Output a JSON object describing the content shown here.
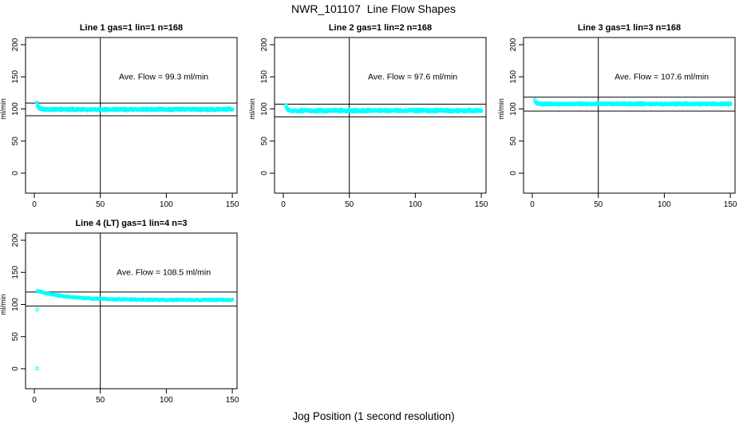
{
  "page": {
    "title": "NWR_101107  Line Flow Shapes",
    "xlabel": "Jog Position (1 second resolution)",
    "ylabel": "ml/min",
    "background": "#ffffff",
    "point_color": "#00ffff",
    "line_color": "#000000"
  },
  "chart_data": [
    {
      "type": "scatter",
      "title": "Line 1 gas=1 lin=1 n=168",
      "annotation": "Ave. Flow =  99.3  ml/min",
      "ave_flow_ml_min": 99.3,
      "ylabel": "ml/min",
      "xticks": [
        0,
        50,
        100,
        150
      ],
      "yticks": [
        0,
        50,
        100,
        150,
        200
      ],
      "xlim": [
        -6.6,
        153.6
      ],
      "ylim": [
        -31,
        211
      ],
      "ref_hlines": [
        109.2,
        89.4
      ],
      "ref_vline": 50,
      "annotation_pos": {
        "x": 98,
        "y": 150
      },
      "series_model": {
        "x_start": 2,
        "x_end": 150,
        "start_value": 110,
        "settle_value": 99.3,
        "decay_tau": 1.0,
        "noise_amp": 2.0,
        "step": 0.5,
        "points_per_step": 2,
        "seed": 11
      },
      "outlier_points": []
    },
    {
      "type": "scatter",
      "title": "Line 2 gas=1 lin=2 n=168",
      "annotation": "Ave. Flow =  97.6  ml/min",
      "ave_flow_ml_min": 97.6,
      "ylabel": "ml/min",
      "xticks": [
        0,
        50,
        100,
        150
      ],
      "yticks": [
        0,
        50,
        100,
        150,
        200
      ],
      "xlim": [
        -6.6,
        153.6
      ],
      "ylim": [
        -31,
        211
      ],
      "ref_hlines": [
        107.4,
        87.8
      ],
      "ref_vline": 50,
      "annotation_pos": {
        "x": 98,
        "y": 150
      },
      "series_model": {
        "x_start": 2,
        "x_end": 150,
        "start_value": 106,
        "settle_value": 97.4,
        "decay_tau": 1.0,
        "noise_amp": 2.2,
        "step": 0.5,
        "points_per_step": 2,
        "seed": 22
      },
      "outlier_points": []
    },
    {
      "type": "scatter",
      "title": "Line 3 gas=1 lin=3 n=168",
      "annotation": "Ave. Flow =  107.6  ml/min",
      "ave_flow_ml_min": 107.6,
      "ylabel": "ml/min",
      "xticks": [
        0,
        50,
        100,
        150
      ],
      "yticks": [
        0,
        50,
        100,
        150,
        200
      ],
      "xlim": [
        -6.6,
        153.6
      ],
      "ylim": [
        -31,
        211
      ],
      "ref_hlines": [
        118.4,
        96.8
      ],
      "ref_vline": 50,
      "annotation_pos": {
        "x": 98,
        "y": 150
      },
      "series_model": {
        "x_start": 2,
        "x_end": 150,
        "start_value": 114,
        "settle_value": 107.8,
        "decay_tau": 0.8,
        "noise_amp": 1.6,
        "step": 0.5,
        "points_per_step": 2,
        "seed": 33
      },
      "outlier_points": []
    },
    {
      "type": "scatter",
      "title": "Line 4 (LT) gas=1 lin=4 n=3",
      "annotation": "Ave. Flow =  108.5  ml/min",
      "ave_flow_ml_min": 108.5,
      "ylabel": "ml/min",
      "xticks": [
        0,
        50,
        100,
        150
      ],
      "yticks": [
        0,
        50,
        100,
        150,
        200
      ],
      "xlim": [
        -6.6,
        153.6
      ],
      "ylim": [
        -31,
        211
      ],
      "ref_hlines": [
        119.4,
        97.7
      ],
      "ref_vline": 50,
      "annotation_pos": {
        "x": 98,
        "y": 150
      },
      "series_model": {
        "x_start": 2.5,
        "x_end": 150,
        "start_value": 121,
        "settle_value": 107.2,
        "decay_tau": 22,
        "noise_amp": 1.1,
        "step": 0.5,
        "points_per_step": 1,
        "seed": 44
      },
      "outlier_points": [
        [
          2.2,
          92
        ],
        [
          2.2,
          0.5
        ]
      ]
    }
  ]
}
